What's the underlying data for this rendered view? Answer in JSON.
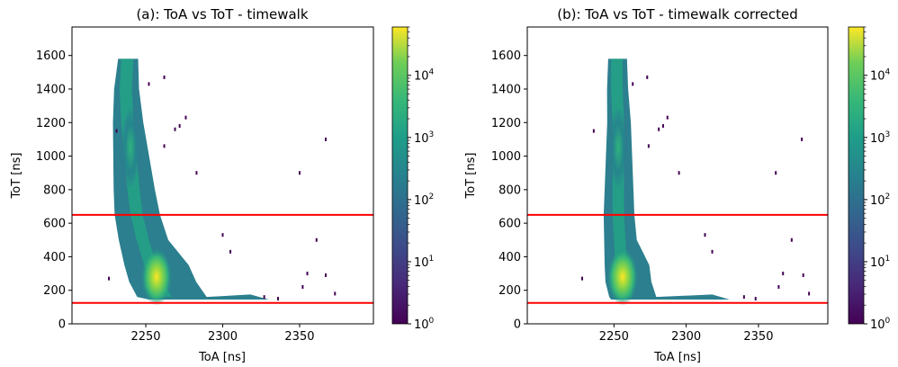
{
  "chart_data": [
    {
      "type": "heatmap",
      "title": "(a): ToA vs ToT - timewalk",
      "xlabel": "ToA [ns]",
      "ylabel": "ToT [ns]",
      "xlim": [
        2202,
        2398
      ],
      "ylim": [
        0,
        1770
      ],
      "xticks": [
        2250,
        2300,
        2350
      ],
      "yticks": [
        0,
        200,
        400,
        600,
        800,
        1000,
        1200,
        1400,
        1600
      ],
      "hlines": [
        650,
        125
      ],
      "hline_color": "#ff0000",
      "colorscale": "viridis",
      "colorbar": {
        "scale": "log",
        "range": [
          1,
          60000
        ],
        "ticks": [
          "10",
          "10",
          "10",
          "10",
          "10"
        ],
        "exponents": [
          "0",
          "1",
          "2",
          "3",
          "4"
        ]
      },
      "core_ridge": [
        [
          1580,
          2237
        ],
        [
          1400,
          2236
        ],
        [
          1200,
          2237
        ],
        [
          1000,
          2239
        ],
        [
          800,
          2241
        ],
        [
          650,
          2243
        ],
        [
          500,
          2247
        ],
        [
          350,
          2252
        ],
        [
          250,
          2256
        ],
        [
          160,
          2262
        ]
      ],
      "outliers": [
        [
          2226,
          270
        ],
        [
          2231,
          1150
        ],
        [
          2252,
          1430
        ],
        [
          2262,
          1470
        ],
        [
          2269,
          1160
        ],
        [
          2276,
          1230
        ],
        [
          2262,
          1060
        ],
        [
          2272,
          1180
        ],
        [
          2283,
          900
        ],
        [
          2300,
          530
        ],
        [
          2305,
          430
        ],
        [
          2350,
          900
        ],
        [
          2367,
          1100
        ],
        [
          2361,
          500
        ],
        [
          2355,
          300
        ],
        [
          2367,
          290
        ],
        [
          2352,
          220
        ],
        [
          2373,
          180
        ],
        [
          2327,
          160
        ],
        [
          2336,
          150
        ]
      ]
    },
    {
      "type": "heatmap",
      "title": "(b): ToA vs ToT - timewalk corrected",
      "xlabel": "ToA [ns]",
      "ylabel": "ToT [ns]",
      "xlim": [
        2190,
        2398
      ],
      "ylim": [
        0,
        1770
      ],
      "xticks": [
        2250,
        2300,
        2350
      ],
      "yticks": [
        0,
        200,
        400,
        600,
        800,
        1000,
        1200,
        1400,
        1600
      ],
      "hlines": [
        650,
        125
      ],
      "hline_color": "#ff0000",
      "colorscale": "viridis",
      "colorbar": {
        "scale": "log",
        "range": [
          1,
          60000
        ],
        "ticks": [
          "10",
          "10",
          "10",
          "10",
          "10"
        ],
        "exponents": [
          "0",
          "1",
          "2",
          "3",
          "4"
        ]
      },
      "core_ridge": [
        [
          1580,
          2251
        ],
        [
          1400,
          2251
        ],
        [
          1200,
          2252
        ],
        [
          1000,
          2252
        ],
        [
          800,
          2252
        ],
        [
          650,
          2252
        ],
        [
          500,
          2253
        ],
        [
          350,
          2254
        ],
        [
          250,
          2255
        ],
        [
          160,
          2258
        ]
      ],
      "outliers": [
        [
          2228,
          270
        ],
        [
          2236,
          1150
        ],
        [
          2263,
          1430
        ],
        [
          2273,
          1470
        ],
        [
          2281,
          1160
        ],
        [
          2287,
          1230
        ],
        [
          2274,
          1060
        ],
        [
          2284,
          1180
        ],
        [
          2295,
          900
        ],
        [
          2313,
          530
        ],
        [
          2318,
          430
        ],
        [
          2362,
          900
        ],
        [
          2380,
          1100
        ],
        [
          2373,
          500
        ],
        [
          2367,
          300
        ],
        [
          2381,
          290
        ],
        [
          2364,
          220
        ],
        [
          2385,
          180
        ],
        [
          2340,
          160
        ],
        [
          2348,
          150
        ]
      ]
    }
  ]
}
